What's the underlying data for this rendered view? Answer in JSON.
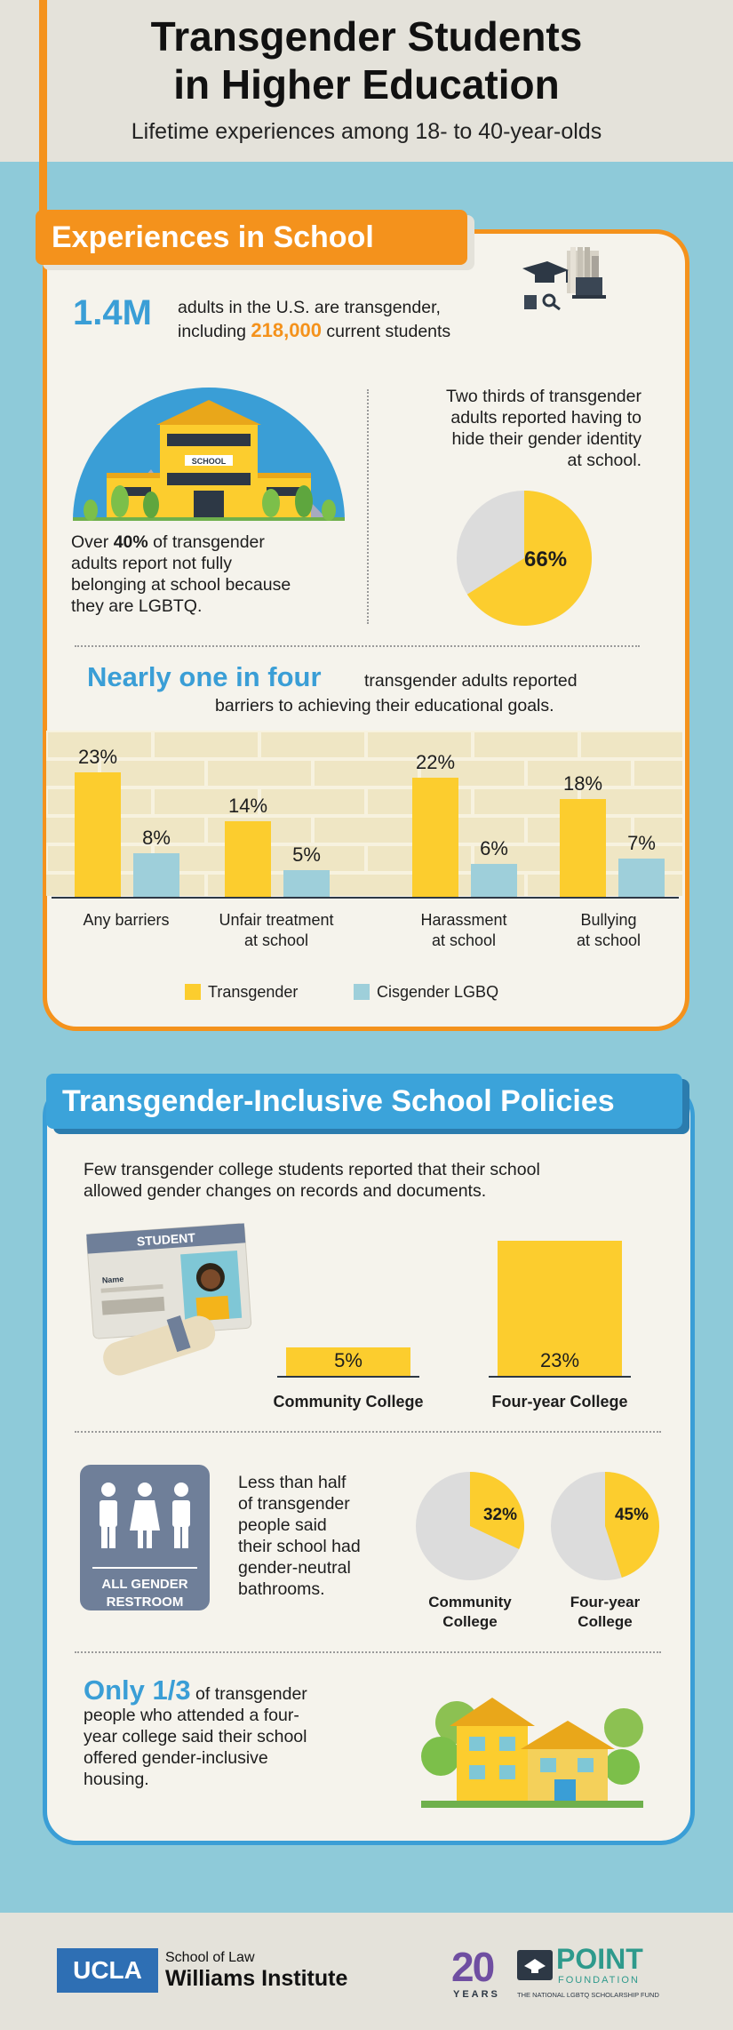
{
  "header": {
    "title_line1": "Transgender Students",
    "title_line2": "in Higher Education",
    "subtitle": "Lifetime experiences among 18- to 40-year-olds"
  },
  "section1": {
    "heading": "Experiences in School",
    "stat1_big": "1.4M",
    "stat1_text_a": "adults in the U.S. are transgender,",
    "stat1_text_b": "including",
    "stat1_highlight": "218,000",
    "stat1_text_c": "current students",
    "school_sign": "SCHOOL",
    "belong_a": "Over",
    "belong_pct": "40%",
    "belong_b": "of transgender",
    "belong_c": "adults report not fully",
    "belong_d": "belonging at school because",
    "belong_e": "they are LGBTQ.",
    "hide_l1": "Two thirds of transgender",
    "hide_l2": "adults reported having to",
    "hide_l3": "hide their gender identity",
    "hide_l4": "at school.",
    "hide_pie_label": "66%",
    "hide_pie_value": 66,
    "barriers_big": "Nearly one in four",
    "barriers_text_a": "transgender adults reported",
    "barriers_text_b": "barriers to achieving their educational goals.",
    "legend_trans": "Transgender",
    "legend_cis": "Cisgender LGBQ"
  },
  "chart_data": {
    "type": "bar",
    "categories": [
      "Any barriers",
      "Unfair treatment at school",
      "Harassment at school",
      "Bullying at school"
    ],
    "category_lines": [
      [
        "Any barriers"
      ],
      [
        "Unfair treatment",
        "at school"
      ],
      [
        "Harassment",
        "at school"
      ],
      [
        "Bullying",
        "at school"
      ]
    ],
    "series": [
      {
        "name": "Transgender",
        "values": [
          23,
          14,
          22,
          18
        ],
        "labels": [
          "23%",
          "14%",
          "22%",
          "18%"
        ],
        "color": "#fccd2e"
      },
      {
        "name": "Cisgender LGBQ",
        "values": [
          8,
          5,
          6,
          7
        ],
        "labels": [
          "8%",
          "5%",
          "6%",
          "7%"
        ],
        "color": "#9ecfda"
      }
    ],
    "ylim": [
      0,
      25
    ]
  },
  "section2": {
    "heading": "Transgender-Inclusive School Policies",
    "records_l1": "Few transgender college students reported that their school",
    "records_l2": "allowed gender changes on records and documents.",
    "card_title": "STUDENT",
    "card_name": "Name",
    "records_bars": [
      {
        "label": "Community College",
        "value": 5,
        "value_label": "5%"
      },
      {
        "label": "Four-year College",
        "value": 23,
        "value_label": "23%"
      }
    ],
    "restroom_l1": "ALL GENDER",
    "restroom_l2": "RESTROOM",
    "bath_l1": "Less than half",
    "bath_l2": "of transgender",
    "bath_l3": "people said",
    "bath_l4": "their school had",
    "bath_l5": "gender-neutral",
    "bath_l6": "bathrooms.",
    "bath_pies": [
      {
        "label_l1": "Community",
        "label_l2": "College",
        "value": 32,
        "value_label": "32%"
      },
      {
        "label_l1": "Four-year",
        "label_l2": "College",
        "value": 45,
        "value_label": "45%"
      }
    ],
    "housing_big": "Only 1/3",
    "housing_a": "of transgender",
    "housing_b": "people who attended a four-",
    "housing_c": "year college said their school",
    "housing_d": "offered gender-inclusive",
    "housing_e": "housing."
  },
  "footer": {
    "ucla": "UCLA",
    "school_of_law": "School of Law",
    "williams": "Williams Institute",
    "years_num": "20",
    "years": "YEARS",
    "point": "POINT",
    "foundation": "FOUNDATION",
    "point_tag": "THE NATIONAL LGBTQ SCHOLARSHIP FUND"
  },
  "colors": {
    "orange": "#f4921c",
    "blue": "#3a9ed6",
    "yellow": "#fccd2e",
    "light_blue": "#9ecfda",
    "teal": "#8ecad9",
    "cream": "#f5f3ec"
  }
}
